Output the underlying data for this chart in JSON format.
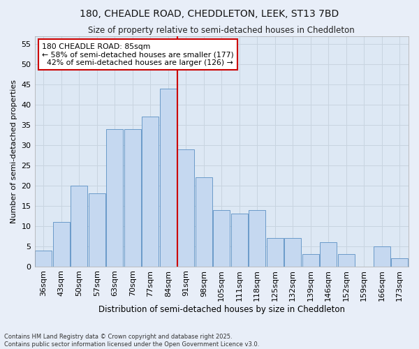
{
  "title_line1": "180, CHEADLE ROAD, CHEDDLETON, LEEK, ST13 7BD",
  "title_line2": "Size of property relative to semi-detached houses in Cheddleton",
  "xlabel": "Distribution of semi-detached houses by size in Cheddleton",
  "ylabel": "Number of semi-detached properties",
  "categories": [
    "36sqm",
    "43sqm",
    "50sqm",
    "57sqm",
    "63sqm",
    "70sqm",
    "77sqm",
    "84sqm",
    "91sqm",
    "98sqm",
    "105sqm",
    "111sqm",
    "118sqm",
    "125sqm",
    "132sqm",
    "139sqm",
    "146sqm",
    "152sqm",
    "159sqm",
    "166sqm",
    "173sqm"
  ],
  "values": [
    4,
    11,
    20,
    18,
    34,
    34,
    37,
    44,
    29,
    22,
    14,
    13,
    14,
    7,
    7,
    3,
    6,
    3,
    0,
    5,
    2
  ],
  "bar_color": "#c5d8f0",
  "bar_edge_color": "#5a8fc3",
  "highlight_index": 7,
  "highlight_line_color": "#cc0000",
  "property_size": "85sqm",
  "property_label": "180 CHEADLE ROAD: 85sqm",
  "pct_smaller": 58,
  "count_smaller": 177,
  "pct_larger": 42,
  "count_larger": 126,
  "annotation_box_color": "#ffffff",
  "annotation_box_edge_color": "#cc0000",
  "ylim": [
    0,
    57
  ],
  "yticks": [
    0,
    5,
    10,
    15,
    20,
    25,
    30,
    35,
    40,
    45,
    50,
    55
  ],
  "grid_color": "#c8d4e0",
  "background_color": "#dde8f4",
  "fig_background_color": "#e8eef8",
  "footer_line1": "Contains HM Land Registry data © Crown copyright and database right 2025.",
  "footer_line2": "Contains public sector information licensed under the Open Government Licence v3.0."
}
